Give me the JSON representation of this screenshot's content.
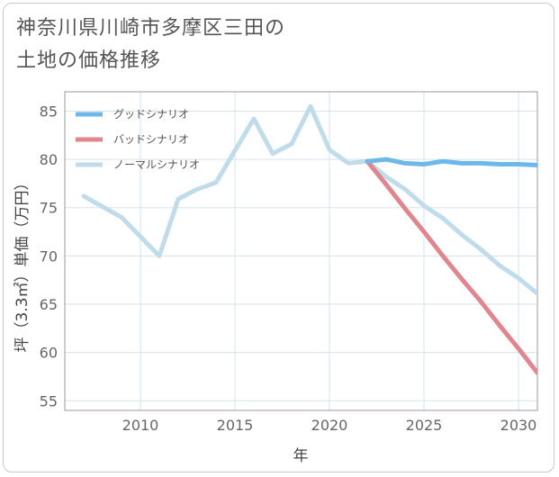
{
  "title": {
    "line1": "神奈川県川崎市多摩区三田の",
    "line2": "土地の価格推移"
  },
  "chart_data": {
    "type": "line",
    "xlabel": "年",
    "ylabel": "坪（3.3㎡）単価（万円）",
    "xlim": [
      2006,
      2031
    ],
    "ylim": [
      54,
      87
    ],
    "x_ticks": [
      2010,
      2015,
      2020,
      2025,
      2030
    ],
    "y_ticks": [
      55,
      60,
      65,
      70,
      75,
      80,
      85
    ],
    "grid": true,
    "legend_position": "top-left",
    "series": [
      {
        "name": "グッドシナリオ",
        "color": "#6cb8ea",
        "x": [
          2022,
          2023,
          2024,
          2025,
          2026,
          2027,
          2028,
          2029,
          2030,
          2031
        ],
        "y": [
          79.8,
          80.0,
          79.6,
          79.5,
          79.8,
          79.6,
          79.6,
          79.5,
          79.5,
          79.4
        ]
      },
      {
        "name": "バッドシナリオ",
        "color": "#e0868f",
        "x": [
          2022,
          2023,
          2024,
          2025,
          2026,
          2027,
          2028,
          2029,
          2030,
          2031
        ],
        "y": [
          79.8,
          77.4,
          74.9,
          72.5,
          70.0,
          67.6,
          65.3,
          62.8,
          60.4,
          57.9
        ]
      },
      {
        "name": "ノーマルシナリオ",
        "color": "#c0dcea",
        "x": [
          2007,
          2008,
          2009,
          2010,
          2011,
          2012,
          2013,
          2014,
          2015,
          2016,
          2017,
          2018,
          2019,
          2020,
          2021,
          2022,
          2023,
          2024,
          2025,
          2026,
          2027,
          2028,
          2029,
          2030,
          2031
        ],
        "y": [
          76.2,
          75.1,
          74.0,
          72.0,
          70.0,
          75.9,
          76.9,
          77.6,
          80.9,
          84.2,
          80.6,
          81.6,
          85.5,
          81.0,
          79.6,
          79.8,
          78.2,
          76.9,
          75.2,
          73.9,
          72.2,
          70.7,
          69.0,
          67.7,
          66.1
        ]
      }
    ]
  }
}
